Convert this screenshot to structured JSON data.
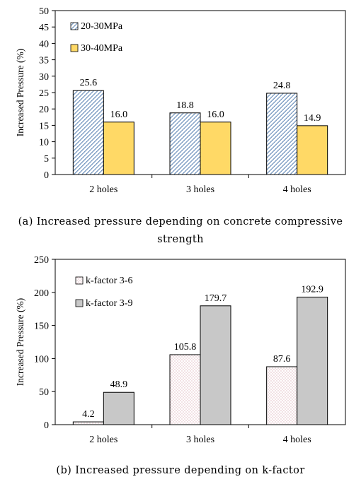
{
  "chart_data": [
    {
      "type": "bar",
      "caption_line1": "(a) Increased pressure depending on concrete compressive",
      "caption_line2": "strength",
      "ylabel": "Increased Pressure (%)",
      "xlabel": "",
      "ylim": [
        0,
        50
      ],
      "yticks": [
        0,
        5,
        10,
        15,
        20,
        25,
        30,
        35,
        40,
        45,
        50
      ],
      "grid": false,
      "legend_position": "top-left",
      "categories": [
        "2 holes",
        "3 holes",
        "4 holes"
      ],
      "series": [
        {
          "name": "20-30MPa",
          "values": [
            25.6,
            18.8,
            24.8
          ],
          "value_labels": [
            "25.6",
            "18.8",
            "24.8"
          ],
          "pattern": "diagonal-hatch",
          "color": "#2b5f9e"
        },
        {
          "name": "30-40MPa",
          "values": [
            16.0,
            16.0,
            14.9
          ],
          "value_labels": [
            "16.0",
            "16.0",
            "14.9"
          ],
          "pattern": "solid",
          "color": "#ffd966"
        }
      ]
    },
    {
      "type": "bar",
      "caption_line1": "(b) Increased pressure depending on k-factor",
      "ylabel": "Increased Pressure (%)",
      "xlabel": "",
      "ylim": [
        0,
        250
      ],
      "yticks": [
        0,
        50,
        100,
        150,
        200,
        250
      ],
      "grid": false,
      "legend_position": "top-left",
      "categories": [
        "2 holes",
        "3 holes",
        "4 holes"
      ],
      "series": [
        {
          "name": "k-factor 3-6",
          "values": [
            4.2,
            105.8,
            87.6
          ],
          "value_labels": [
            "4.2",
            "105.8",
            "87.6"
          ],
          "pattern": "dotted",
          "color": "#c07080"
        },
        {
          "name": "k-factor 3-9",
          "values": [
            48.9,
            179.7,
            192.9
          ],
          "value_labels": [
            "48.9",
            "179.7",
            "192.9"
          ],
          "pattern": "solid",
          "color": "#c8c8c8"
        }
      ]
    }
  ]
}
